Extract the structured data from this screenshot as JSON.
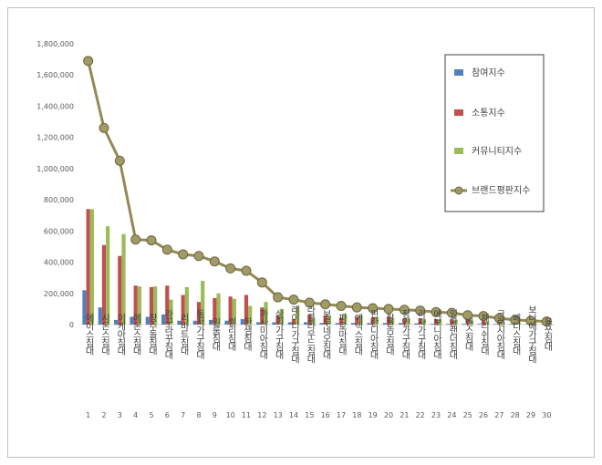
{
  "chart_data": {
    "type": "bar",
    "yticks": [
      "0",
      "200,000",
      "400,000",
      "600,000",
      "800,000",
      "1,000,000",
      "1,200,000",
      "1,400,000",
      "1,600,000",
      "1,800,000"
    ],
    "ylim": [
      0,
      1800000
    ],
    "grid": false,
    "legend_position": "right",
    "index": [
      "1",
      "2",
      "3",
      "4",
      "5",
      "6",
      "7",
      "8",
      "9",
      "10",
      "11",
      "12",
      "13",
      "14",
      "15",
      "16",
      "17",
      "18",
      "19",
      "20",
      "21",
      "22",
      "23",
      "24",
      "25",
      "26",
      "27",
      "28",
      "29",
      "30"
    ],
    "categories": [
      "에이스침대",
      "시몬스침대",
      "이케아침대",
      "에몬스침대",
      "장수돌침대",
      "라꾸라꾸침대",
      "리바트침대",
      "동서가구침대",
      "일룸침대",
      "씰리침대",
      "한샘침대",
      "까사미아침대",
      "삼익가구침대",
      "레이디가구침대",
      "라클라우드침대",
      "보루네오침대",
      "파로마침대",
      "에넥스침대",
      "핀란디아침대",
      "팔로모침대",
      "장인가구침대",
      "라자가구침대",
      "에보니아침대",
      "잉글랜더침대",
      "벤스침대",
      "체리쉬침대",
      "크렌시아침대",
      "베디스침대",
      "보니애가구침대",
      "율쏘침대"
    ],
    "series": [
      {
        "name": "참여지수",
        "color": "#4f81bd",
        "values": [
          220000,
          110000,
          30000,
          50000,
          50000,
          65000,
          25000,
          25000,
          30000,
          25000,
          35000,
          15000,
          15000,
          15000,
          15000,
          10000,
          10000,
          10000,
          10000,
          10000,
          10000,
          8000,
          5000,
          5000,
          5000,
          5000,
          4000,
          4000,
          3000,
          3000
        ]
      },
      {
        "name": "소통지수",
        "color": "#c0504d",
        "values": [
          740000,
          510000,
          440000,
          250000,
          240000,
          250000,
          190000,
          145000,
          170000,
          180000,
          190000,
          110000,
          60000,
          35000,
          65000,
          60000,
          45000,
          50000,
          45000,
          50000,
          40000,
          40000,
          35000,
          35000,
          30000,
          30000,
          20000,
          15000,
          15000,
          10000
        ]
      },
      {
        "name": "커뮤니티지수",
        "color": "#9bbb59",
        "values": [
          740000,
          630000,
          580000,
          245000,
          245000,
          160000,
          240000,
          280000,
          200000,
          165000,
          120000,
          145000,
          100000,
          115000,
          40000,
          60000,
          70000,
          60000,
          50000,
          45000,
          40000,
          35000,
          35000,
          30000,
          25000,
          20000,
          15000,
          12000,
          8000,
          5000
        ]
      }
    ],
    "line": {
      "name": "브랜드평판지수",
      "color": "#938953",
      "values": [
        1690000,
        1260000,
        1050000,
        545000,
        540000,
        480000,
        450000,
        440000,
        405000,
        360000,
        345000,
        270000,
        175000,
        160000,
        140000,
        130000,
        120000,
        110000,
        105000,
        100000,
        95000,
        90000,
        80000,
        75000,
        60000,
        55000,
        40000,
        30000,
        25000,
        20000
      ]
    }
  }
}
